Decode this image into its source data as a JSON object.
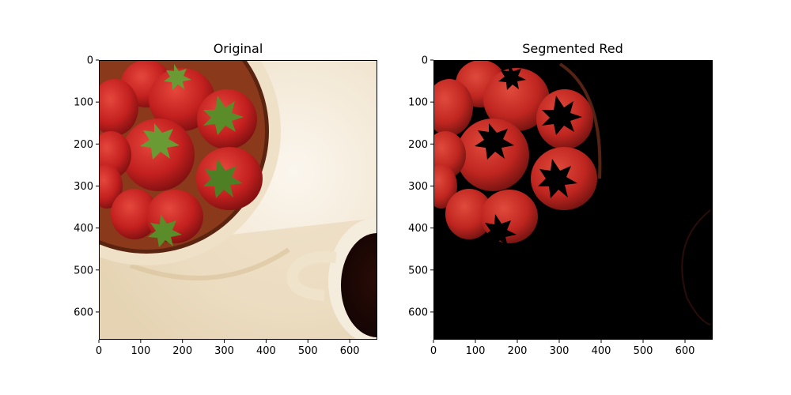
{
  "figure": {
    "panels": [
      {
        "title": "Original",
        "x_ticks": [
          "0",
          "100",
          "200",
          "300",
          "400",
          "500",
          "600"
        ],
        "y_ticks": [
          "0",
          "100",
          "200",
          "300",
          "400",
          "500",
          "600"
        ]
      },
      {
        "title": "Segmented Red",
        "x_ticks": [
          "0",
          "100",
          "200",
          "300",
          "400",
          "500",
          "600"
        ],
        "y_ticks": [
          "0",
          "100",
          "200",
          "300",
          "400",
          "500",
          "600"
        ]
      }
    ]
  }
}
